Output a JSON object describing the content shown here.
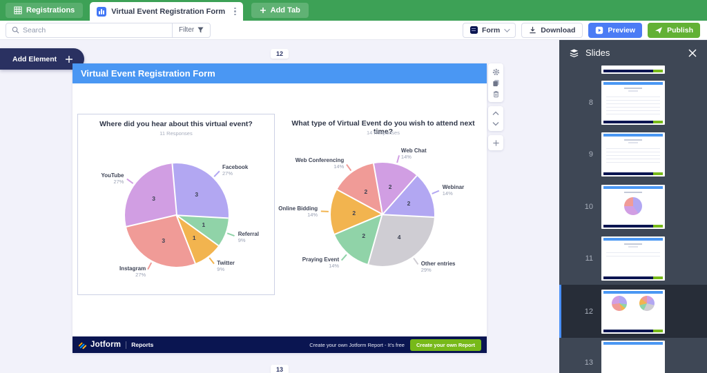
{
  "topbar": {
    "tabs": [
      {
        "label": "Registrations"
      },
      {
        "label": "Virtual Event Registration Form"
      }
    ],
    "add_tab": {
      "label": "Add Tab"
    }
  },
  "toolbar": {
    "search_placeholder": "Search",
    "filter_label": "Filter",
    "form_label": "Form",
    "download_label": "Download",
    "preview_label": "Preview",
    "publish_label": "Publish"
  },
  "canvas": {
    "add_element_label": "Add Element",
    "current_slide_number": "12",
    "next_slide_number": "13",
    "slide_title": "Virtual Event Registration Form",
    "footer": {
      "brand": "Jotform",
      "product": "Reports",
      "promo": "Create your own Jotform Report - It's free",
      "cta": "Create your own Report"
    }
  },
  "chart_data": [
    {
      "type": "pie",
      "title": "Where did you hear about this virtual event?",
      "subtitle": "11 Responses",
      "total_responses": 11,
      "start_angle": -5,
      "slices": [
        {
          "label": "Facebook",
          "value": 3,
          "percent": "27%",
          "color": "#b2a7f2"
        },
        {
          "label": "Referral",
          "value": 1,
          "percent": "9%",
          "color": "#90d3a8"
        },
        {
          "label": "Twitter",
          "value": 1,
          "percent": "9%",
          "color": "#f2b44f"
        },
        {
          "label": "Instagram",
          "value": 3,
          "percent": "27%",
          "color": "#f09b97"
        },
        {
          "label": "YouTube",
          "value": 3,
          "percent": "27%",
          "color": "#d19ee3"
        }
      ]
    },
    {
      "type": "pie",
      "title": "What type of Virtual Event do you wish to attend next time?",
      "subtitle": "14 Responses",
      "total_responses": 14,
      "start_angle": -10,
      "slices": [
        {
          "label": "Web Chat",
          "value": 2,
          "percent": "14%",
          "color": "#d19ee3"
        },
        {
          "label": "Webinar",
          "value": 2,
          "percent": "14%",
          "color": "#b2a7f2"
        },
        {
          "label": "Other entries",
          "value": 4,
          "percent": "29%",
          "color": "#cfcdd3"
        },
        {
          "label": "Praying Event",
          "value": 2,
          "percent": "14%",
          "color": "#90d3a8"
        },
        {
          "label": "Online Bidding",
          "value": 2,
          "percent": "14%",
          "color": "#f2b44f"
        },
        {
          "label": "Web Conferencing",
          "value": 2,
          "percent": "14%",
          "color": "#f09b97"
        }
      ]
    }
  ],
  "slides_panel": {
    "title": "Slides",
    "selected_number": "12",
    "items": [
      {
        "number": "8"
      },
      {
        "number": "9"
      },
      {
        "number": "10"
      },
      {
        "number": "11"
      },
      {
        "number": "12"
      },
      {
        "number": "13"
      }
    ]
  },
  "icons": {
    "registrations_tab": "grid-icon",
    "report_tab": "bar-chart-icon",
    "search": "magnifier-icon",
    "filter": "funnel-icon",
    "download": "download-arrow-icon",
    "preview": "play-icon",
    "publish": "paper-plane-icon",
    "element_settings": "gear-icon",
    "element_duplicate": "copy-icon",
    "element_delete": "trash-icon",
    "move_up": "chevron-up-icon",
    "move_down": "chevron-down-icon",
    "add_slide": "plus-icon",
    "slides": "layers-icon",
    "close": "x-icon"
  },
  "accent_colors": {
    "topbar_green": "#3da156",
    "header_blue": "#4a97f3",
    "preview_blue": "#4b7cf5",
    "publish_green": "#62b135",
    "footer_navy": "#0a1551",
    "cta_green": "#77b919"
  }
}
